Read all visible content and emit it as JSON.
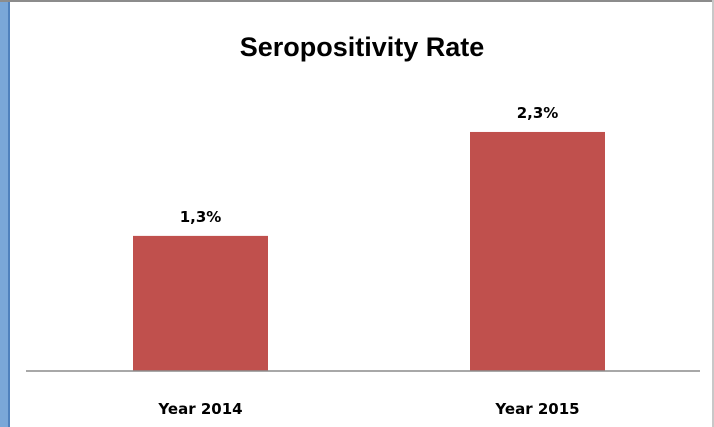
{
  "chart_data": {
    "type": "bar",
    "title": "Seropositivity Rate",
    "categories": [
      "Year 2014",
      "Year 2015"
    ],
    "values": [
      1.3,
      2.3
    ],
    "value_labels": [
      "1,3%",
      "2,3%"
    ],
    "xlabel": "",
    "ylabel": "",
    "ylim": [
      0,
      2.8
    ],
    "grid": false,
    "legend": "none",
    "bar_color": "#c0504d"
  }
}
